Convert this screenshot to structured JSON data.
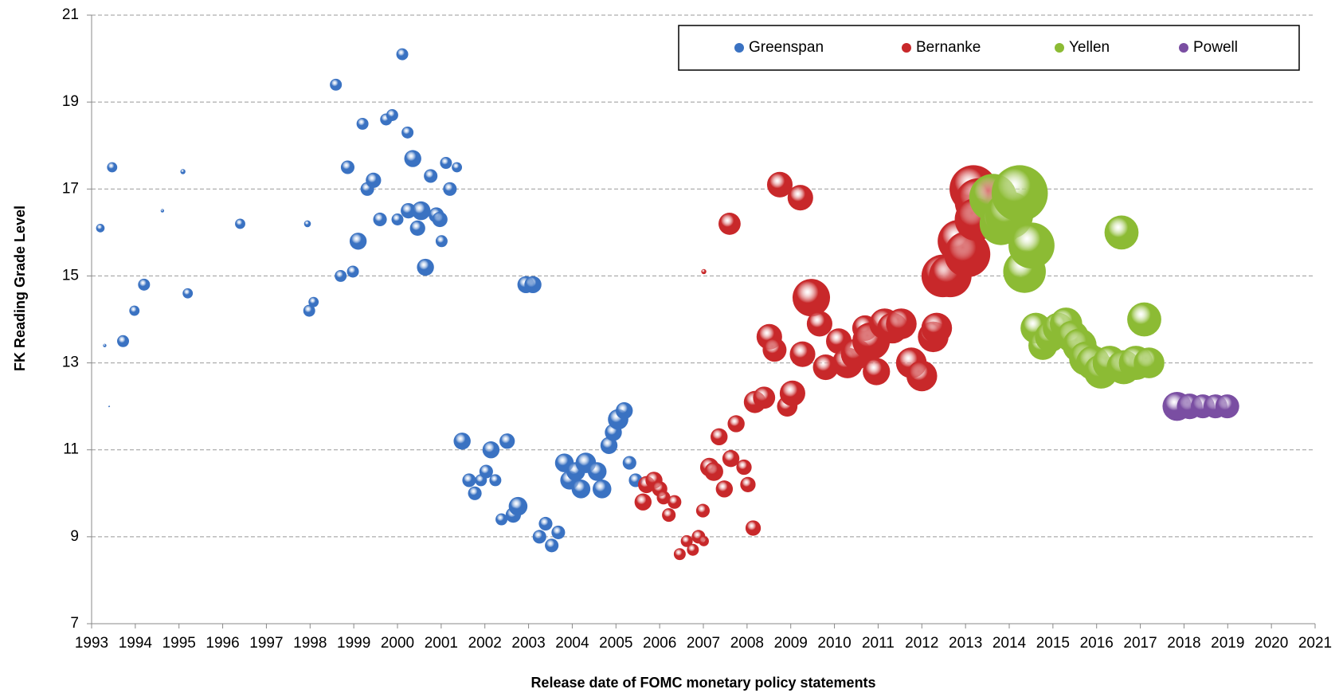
{
  "chart_data": {
    "type": "bubble",
    "x_label": "Release date of FOMC monetary policy statements",
    "y_label": "FK Reading Grade Level",
    "xlim": [
      1993,
      2021
    ],
    "xticks": [
      1993,
      1994,
      1995,
      1996,
      1997,
      1998,
      1999,
      2000,
      2001,
      2002,
      2003,
      2004,
      2005,
      2006,
      2007,
      2008,
      2009,
      2010,
      2011,
      2012,
      2013,
      2014,
      2015,
      2016,
      2017,
      2018,
      2019,
      2020,
      2021
    ],
    "ylim": [
      7,
      21
    ],
    "yticks": [
      7,
      9,
      11,
      13,
      15,
      17,
      19,
      21
    ],
    "grid": true,
    "legend": "top-right",
    "series": [
      {
        "name": "Greenspan",
        "color": "#3a72c2",
        "x": [
          1993.2,
          1993.47,
          1993.3,
          1993.4,
          1993.72,
          1993.98,
          1994.2,
          1994.62,
          1995.09,
          1995.2,
          1996.4,
          1997.94,
          1997.98,
          1998.08,
          1998.59,
          1998.7,
          1998.86,
          1998.98,
          1999.1,
          1999.2,
          1999.31,
          1999.45,
          1999.6,
          1999.74,
          1999.88,
          2000.0,
          2000.11,
          2000.23,
          2000.25,
          2000.35,
          2000.46,
          2000.54,
          2000.64,
          2000.76,
          2000.89,
          2000.97,
          2001.01,
          2001.11,
          2001.2,
          2001.36,
          2001.48,
          2001.64,
          2001.77,
          2001.91,
          2002.03,
          2002.14,
          2002.24,
          2002.38,
          2002.51,
          2002.65,
          2002.76,
          2002.94,
          2003.1,
          2003.25,
          2003.39,
          2003.53,
          2003.68,
          2003.82,
          2003.94,
          2004.08,
          2004.2,
          2004.31,
          2004.57,
          2004.68,
          2004.84,
          2004.94,
          2005.05,
          2005.19,
          2005.31,
          2005.45
        ],
        "values": [
          16.1,
          17.5,
          13.4,
          12.0,
          13.5,
          14.2,
          14.8,
          16.5,
          17.4,
          14.6,
          16.2,
          16.2,
          14.2,
          14.4,
          19.4,
          15.0,
          17.5,
          15.1,
          15.8,
          18.5,
          17.0,
          17.2,
          16.3,
          18.6,
          18.7,
          16.3,
          20.1,
          18.3,
          16.5,
          17.7,
          16.1,
          16.5,
          15.2,
          17.3,
          16.4,
          16.3,
          15.8,
          17.6,
          17.0,
          17.5,
          11.2,
          10.3,
          10.0,
          10.3,
          10.5,
          11.0,
          10.3,
          9.4,
          11.2,
          9.5,
          9.7,
          14.8,
          14.8,
          9.0,
          9.3,
          8.8,
          9.1,
          10.7,
          10.3,
          10.5,
          10.1,
          10.7,
          10.5,
          10.1,
          11.1,
          11.4,
          11.7,
          11.9,
          10.7,
          10.3
        ],
        "sizes": [
          5,
          6,
          2,
          1,
          7,
          6,
          7,
          2,
          3,
          6,
          6,
          4,
          7,
          6,
          7,
          7,
          8,
          7,
          10,
          7,
          8,
          9,
          8,
          7,
          7,
          7,
          7,
          7,
          9,
          10,
          9,
          11,
          10,
          8,
          9,
          9,
          7,
          7,
          8,
          6,
          10,
          8,
          8,
          7,
          8,
          10,
          7,
          7,
          9,
          9,
          11,
          10,
          10,
          8,
          8,
          8,
          8,
          11,
          11,
          11,
          11,
          12,
          11,
          11,
          10,
          10,
          12,
          10,
          8,
          8
        ]
      },
      {
        "name": "Bernanke",
        "color": "#c8282a",
        "x": [
          2005.62,
          2005.7,
          2005.87,
          2006.0,
          2006.09,
          2006.21,
          2006.34,
          2006.46,
          2006.62,
          2006.76,
          2006.89,
          2007.01,
          2006.99,
          2007.01,
          2007.14,
          2007.24,
          2007.36,
          2007.48,
          2007.6,
          2007.63,
          2007.75,
          2007.93,
          2008.02,
          2008.14,
          2008.18,
          2008.39,
          2008.51,
          2008.63,
          2008.75,
          2008.92,
          2009.04,
          2009.22,
          2009.27,
          2009.47,
          2009.66,
          2009.8,
          2010.1,
          2010.3,
          2010.5,
          2010.7,
          2010.84,
          2010.96,
          2011.15,
          2011.33,
          2011.53,
          2011.76,
          2012.0,
          2012.26,
          2012.34,
          2012.48,
          2012.65,
          2012.85,
          2013.04,
          2013.18,
          2013.3,
          2013.24
        ],
        "values": [
          9.8,
          10.2,
          10.3,
          10.1,
          9.9,
          9.5,
          9.8,
          8.6,
          8.9,
          8.7,
          9.0,
          8.9,
          9.6,
          15.1,
          10.6,
          10.5,
          11.3,
          10.1,
          16.2,
          10.8,
          11.6,
          10.6,
          10.2,
          9.2,
          12.1,
          12.2,
          13.6,
          13.3,
          17.1,
          12.0,
          12.3,
          16.8,
          13.2,
          14.5,
          13.9,
          12.9,
          13.5,
          13.0,
          13.2,
          13.8,
          13.5,
          12.8,
          13.9,
          13.8,
          13.9,
          13.0,
          12.7,
          13.6,
          13.8,
          15.0,
          15.0,
          15.8,
          15.5,
          17.0,
          16.7,
          16.3
        ],
        "sizes": [
          10,
          10,
          10,
          9,
          8,
          8,
          8,
          7,
          7,
          7,
          8,
          6,
          8,
          3,
          11,
          11,
          10,
          10,
          13,
          10,
          10,
          9,
          9,
          9,
          13,
          13,
          15,
          14,
          15,
          12,
          15,
          15,
          15,
          22,
          15,
          15,
          15,
          18,
          18,
          15,
          22,
          16,
          18,
          18,
          18,
          18,
          18,
          18,
          18,
          25,
          25,
          25,
          27,
          28,
          28,
          25
        ]
      },
      {
        "name": "Yellen",
        "color": "#8cbb34",
        "x": [
          2013.63,
          2013.81,
          2014.0,
          2014.24,
          2014.35,
          2014.51,
          2014.61,
          2014.77,
          2014.94,
          2015.12,
          2015.3,
          2015.45,
          2015.61,
          2015.76,
          2015.92,
          2016.1,
          2016.3,
          2016.57,
          2016.62,
          2016.9,
          2017.09,
          2017.2
        ],
        "values": [
          16.8,
          16.2,
          16.4,
          16.9,
          15.1,
          15.7,
          13.8,
          13.4,
          13.6,
          13.8,
          13.9,
          13.6,
          13.4,
          13.1,
          13.0,
          12.8,
          13.0,
          16.0,
          12.9,
          13.0,
          14.0,
          13.0
        ],
        "sizes": [
          28,
          25,
          28,
          33,
          25,
          27,
          18,
          17,
          18,
          18,
          19,
          19,
          20,
          20,
          20,
          20,
          20,
          20,
          20,
          20,
          20,
          18
        ]
      },
      {
        "name": "Powell",
        "color": "#7a4ea2",
        "x": [
          2017.84,
          2018.13,
          2018.43,
          2018.72,
          2018.99
        ],
        "values": [
          12.0,
          12.0,
          12.0,
          12.0,
          12.0
        ],
        "sizes": [
          17,
          15,
          14,
          14,
          14
        ]
      }
    ]
  }
}
